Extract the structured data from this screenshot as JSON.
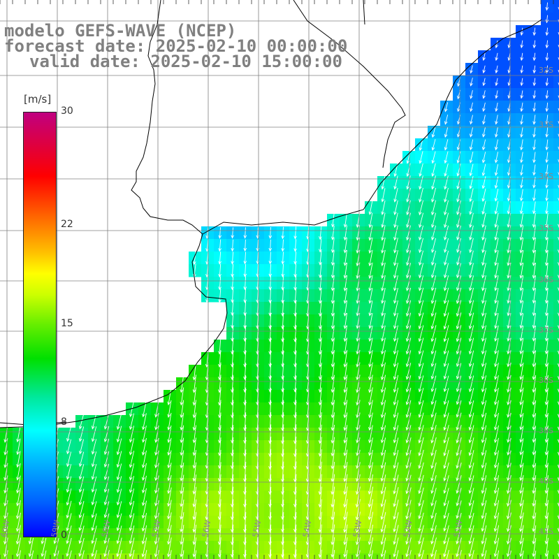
{
  "title": {
    "line1": "modelo GEFS-WAVE (NCEP)",
    "line2": "forecast date: 2025-02-10 00:00:00",
    "line3": "valid date: 2025-02-10 15:00:00"
  },
  "colorbar": {
    "unit": "[m/s]",
    "min": 0,
    "max": 30,
    "ticks": [
      {
        "value": 30,
        "label": "30"
      },
      {
        "value": 22,
        "label": "22"
      },
      {
        "value": 15,
        "label": "15"
      },
      {
        "value": 8,
        "label": "8"
      },
      {
        "value": 0,
        "label": "0"
      }
    ]
  },
  "map": {
    "lon_labels": [
      "60W",
      "59W",
      "58W",
      "57W",
      "56W",
      "55W",
      "54W",
      "53W",
      "52W",
      "51W"
    ],
    "lat_labels": [
      "32S",
      "33S",
      "34S",
      "35S",
      "36S",
      "37S",
      "38S",
      "39S",
      "40S",
      "41S"
    ],
    "field": "wind speed",
    "wind_direction": "mostly from the north"
  }
}
